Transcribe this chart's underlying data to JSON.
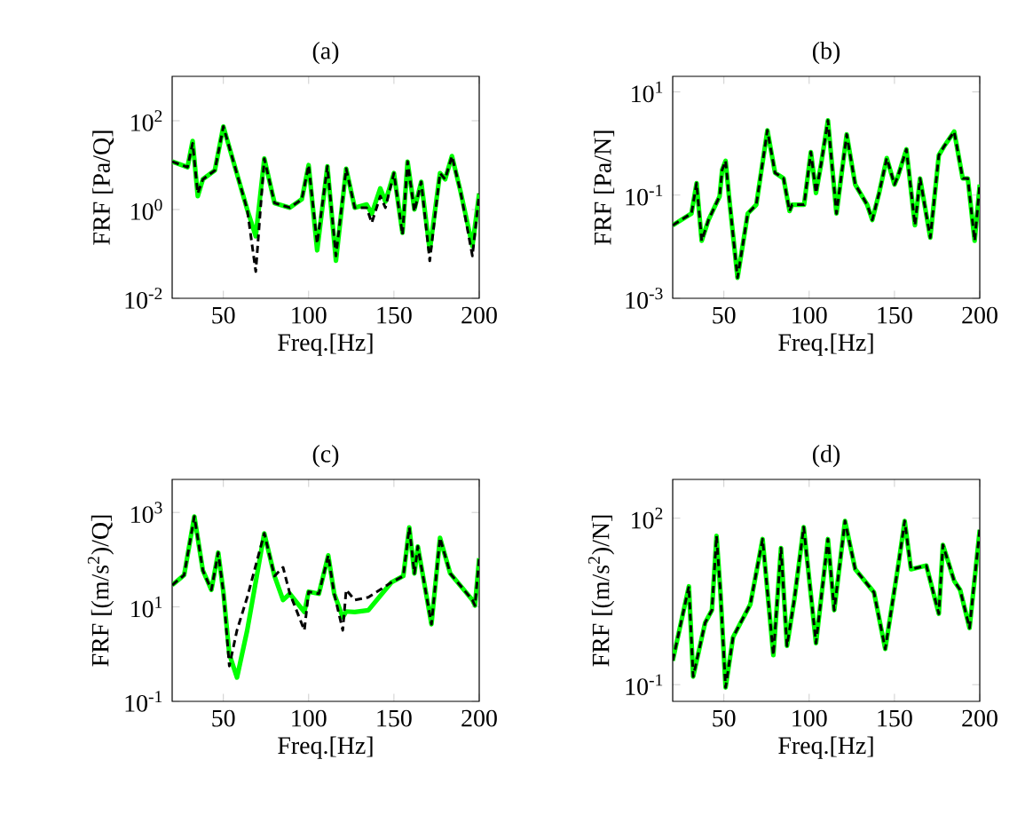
{
  "chart_data": [
    {
      "type": "line",
      "title": "(a)",
      "xlabel": "Freq.[Hz]",
      "ylabel": "FRF [Pa/Q]",
      "log": "y",
      "xlim": [
        20,
        200
      ],
      "ylim": [
        0.01,
        1000
      ],
      "xticks": [
        50,
        100,
        150,
        200
      ],
      "yticks": [
        {
          "value": 0.01,
          "label": "10$^{-2}$"
        },
        {
          "value": 1,
          "label": "10$^{0}$"
        },
        {
          "value": 100,
          "label": "10$^{2}$"
        }
      ],
      "x": [
        20,
        29,
        32,
        35,
        38,
        45,
        50,
        52,
        64,
        69,
        74,
        80,
        89,
        96,
        100,
        105,
        111,
        116,
        122,
        127,
        134,
        137,
        142,
        145,
        150,
        155,
        158,
        162,
        166,
        171,
        177,
        180,
        184,
        189,
        196,
        200
      ],
      "series": [
        {
          "color": "#00ff00",
          "line_style": "solid",
          "values": [
            12,
            9,
            35,
            2.0,
            4.8,
            7.6,
            74,
            40,
            1.0,
            0.25,
            14,
            1.4,
            1.1,
            1.7,
            10,
            0.12,
            9.4,
            0.07,
            8.3,
            1.1,
            1.3,
            0.8,
            3,
            1.5,
            6.6,
            0.3,
            12,
            1.0,
            4.2,
            0.12,
            6.6,
            4.8,
            16,
            2.6,
            0.15,
            2.3
          ]
        },
        {
          "color": "#000000",
          "line_style": "dashed",
          "values": [
            12,
            9,
            31,
            2.3,
            4.8,
            7.6,
            74,
            40,
            1.0,
            0.04,
            14,
            1.4,
            1.1,
            1.7,
            10,
            0.17,
            9.4,
            0.09,
            8.3,
            1.1,
            1.1,
            0.5,
            2,
            1.1,
            6.6,
            0.27,
            12,
            0.9,
            4.2,
            0.07,
            6.6,
            4.8,
            16,
            2.6,
            0.09,
            2.3
          ]
        }
      ]
    },
    {
      "type": "line",
      "title": "(b)",
      "xlabel": "Freq.[Hz]",
      "ylabel": "FRF [Pa/N]",
      "log": "y",
      "xlim": [
        20,
        200
      ],
      "ylim": [
        0.001,
        20
      ],
      "xticks": [
        50,
        100,
        150,
        200
      ],
      "yticks": [
        {
          "value": 0.001,
          "label": "10$^{-3}$"
        },
        {
          "value": 0.1,
          "label": "10$^{-1}$"
        },
        {
          "value": 10,
          "label": "10$^{1}$"
        }
      ],
      "x": [
        20,
        31,
        34,
        37,
        41,
        47.5,
        49,
        51,
        53,
        58,
        64,
        69,
        75.5,
        80,
        85,
        88.5,
        90,
        97,
        101,
        104,
        107,
        111,
        116,
        122,
        127,
        134,
        137,
        141,
        145.5,
        150,
        152,
        157,
        162,
        165,
        171,
        176,
        179,
        185,
        190,
        193,
        197,
        200
      ],
      "series": [
        {
          "color": "#00ff00",
          "line_style": "solid",
          "values": [
            0.026,
            0.044,
            0.17,
            0.013,
            0.033,
            0.095,
            0.31,
            0.46,
            0.095,
            0.0025,
            0.044,
            0.065,
            1.8,
            0.27,
            0.21,
            0.049,
            0.065,
            0.065,
            0.68,
            0.11,
            0.4,
            2.8,
            0.044,
            1.5,
            0.16,
            0.065,
            0.033,
            0.11,
            0.52,
            0.16,
            0.23,
            0.77,
            0.026,
            0.21,
            0.015,
            0.59,
            0.87,
            1.7,
            0.21,
            0.21,
            0.013,
            0.16
          ]
        },
        {
          "color": "#000000",
          "line_style": "dashed",
          "values": [
            0.026,
            0.044,
            0.17,
            0.013,
            0.033,
            0.095,
            0.31,
            0.46,
            0.095,
            0.0025,
            0.044,
            0.065,
            1.8,
            0.27,
            0.21,
            0.049,
            0.065,
            0.065,
            0.68,
            0.11,
            0.4,
            2.8,
            0.044,
            1.5,
            0.16,
            0.065,
            0.033,
            0.11,
            0.52,
            0.16,
            0.23,
            0.77,
            0.026,
            0.21,
            0.015,
            0.59,
            0.87,
            1.7,
            0.21,
            0.21,
            0.013,
            0.16
          ]
        }
      ]
    },
    {
      "type": "line",
      "title": "(c)",
      "xlabel": "Freq.[Hz]",
      "ylabel": "FRF [(m/s$^{2}$)/Q]",
      "log": "y",
      "xlim": [
        20,
        200
      ],
      "ylim": [
        0.1,
        5000
      ],
      "xticks": [
        50,
        100,
        150,
        200
      ],
      "yticks": [
        {
          "value": 0.1,
          "label": "10$^{-1}$"
        },
        {
          "value": 10,
          "label": "10$^{1}$"
        },
        {
          "value": 1000,
          "label": "10$^{3}$"
        }
      ],
      "x": [
        20,
        27,
        33,
        38,
        43,
        47,
        50,
        53.5,
        58,
        64,
        74,
        80,
        85,
        89,
        97.5,
        100,
        106,
        111.5,
        115,
        120,
        122,
        127,
        135,
        148.5,
        155.5,
        159,
        162,
        164,
        172,
        177,
        183,
        196,
        197.5,
        200
      ],
      "series": [
        {
          "color": "#00ff00",
          "line_style": "solid",
          "values": [
            29,
            47,
            820,
            59,
            23,
            141,
            21,
            1.0,
            0.32,
            3.2,
            360,
            45,
            14,
            19,
            7.8,
            21,
            19,
            123,
            19,
            6,
            8,
            7.8,
            8.5,
            33,
            45,
            480,
            51,
            190,
            4.3,
            290,
            51,
            14,
            10.7,
            107
          ]
        },
        {
          "color": "#000000",
          "line_style": "dashed",
          "values": [
            29,
            47,
            820,
            59,
            23,
            141,
            21,
            0.56,
            3.2,
            16,
            360,
            45,
            69,
            19,
            3.2,
            21,
            19,
            123,
            19,
            3.2,
            23,
            14,
            16,
            33,
            45,
            480,
            51,
            190,
            4.3,
            290,
            51,
            14,
            10.7,
            107
          ]
        }
      ]
    },
    {
      "type": "line",
      "title": "(d)",
      "xlabel": "Freq.[Hz]",
      "ylabel": "FRF [(m/s$^{2}$)/N]",
      "log": "y",
      "xlim": [
        20,
        200
      ],
      "ylim": [
        0.05,
        500
      ],
      "xticks": [
        50,
        100,
        150,
        200
      ],
      "yticks": [
        {
          "value": 0.1,
          "label": "10$^{-1}$"
        },
        {
          "value": 100,
          "label": "10$^{2}$"
        }
      ],
      "x": [
        20,
        29.5,
        32,
        39,
        43,
        45.7,
        48,
        51,
        55.4,
        65.5,
        72.7,
        79,
        83.5,
        87,
        91.4,
        96.8,
        104,
        111,
        114.7,
        121,
        127,
        138,
        144.6,
        152.5,
        156,
        159.7,
        168.7,
        176,
        178.4,
        185,
        188.5,
        194,
        200
      ],
      "series": [
        {
          "color": "#00ff00",
          "line_style": "solid",
          "values": [
            0.27,
            5.9,
            0.14,
            1.3,
            2.2,
            48,
            4.6,
            0.089,
            0.72,
            2.8,
            42,
            0.34,
            29,
            0.5,
            3.6,
            69,
            0.56,
            42,
            2.2,
            89,
            12,
            4.6,
            0.44,
            16,
            89,
            12,
            14,
            1.9,
            33,
            7.4,
            5.1,
            1.05,
            62
          ]
        },
        {
          "color": "#000000",
          "line_style": "dashed",
          "values": [
            0.27,
            5.9,
            0.14,
            1.3,
            2.2,
            48,
            4.6,
            0.089,
            0.72,
            2.8,
            42,
            0.34,
            29,
            0.5,
            3.6,
            69,
            0.56,
            42,
            2.2,
            89,
            12,
            4.6,
            0.44,
            16,
            89,
            12,
            14,
            1.9,
            33,
            7.4,
            5.1,
            1.05,
            62
          ]
        }
      ]
    }
  ]
}
